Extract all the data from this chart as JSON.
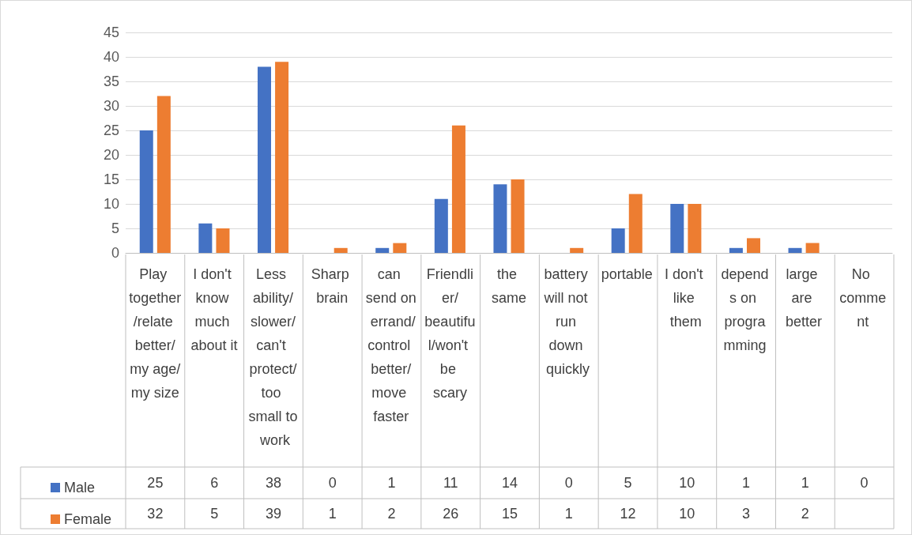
{
  "chart_data": {
    "type": "bar",
    "categories": [
      "Play together/relate better/my age/my size",
      "I don't know much about it",
      "Less ability/slower/can't protect/too small to work",
      "Sharp brain",
      "can send on errand/control better/move faster",
      "Friendlier/beautiful/won't be scary",
      "the same",
      "battery will not run down quickly",
      "portable",
      "I don't like them",
      "depends on programming",
      "large are better",
      "No comment"
    ],
    "series": [
      {
        "name": "Male",
        "color": "#4472c4",
        "values": [
          25,
          6,
          38,
          0,
          1,
          11,
          14,
          0,
          5,
          10,
          1,
          1,
          0
        ]
      },
      {
        "name": "Female",
        "color": "#ed7d31",
        "values": [
          32,
          5,
          39,
          1,
          2,
          26,
          15,
          1,
          12,
          10,
          3,
          2,
          null
        ]
      }
    ],
    "ylim": [
      0,
      45
    ],
    "yticks": [
      0,
      5,
      10,
      15,
      20,
      25,
      30,
      35,
      40,
      45
    ],
    "grid": "y",
    "legend": "bottom",
    "data_labels": true
  }
}
